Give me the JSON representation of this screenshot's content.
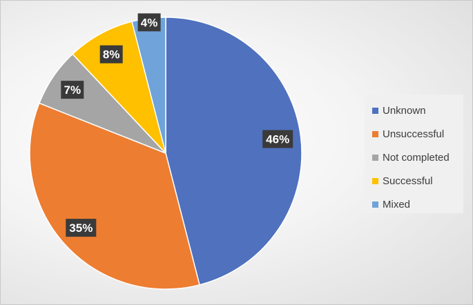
{
  "chart_data": {
    "type": "pie",
    "title": "",
    "legend_position": "right",
    "slices": [
      {
        "name": "Unknown",
        "value": 46,
        "label": "46%",
        "color": "#4f71be"
      },
      {
        "name": "Unsuccessful",
        "value": 35,
        "label": "35%",
        "color": "#ed7d31"
      },
      {
        "name": "Not completed",
        "value": 7,
        "label": "7%",
        "color": "#a5a5a5"
      },
      {
        "name": "Successful",
        "value": 8,
        "label": "8%",
        "color": "#ffc000"
      },
      {
        "name": "Mixed",
        "value": 4,
        "label": "4%",
        "color": "#6fa3d9"
      }
    ]
  }
}
